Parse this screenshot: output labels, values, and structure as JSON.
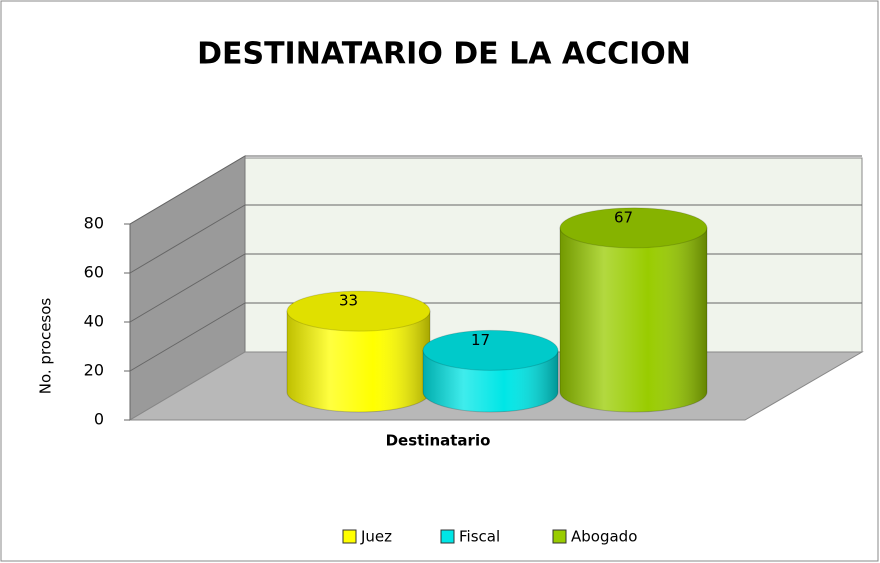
{
  "chart_data": {
    "type": "bar",
    "title": "DESTINATARIO DE LA ACCION",
    "y_label": "No. procesos",
    "categories": [
      "Destinatario"
    ],
    "series": [
      {
        "name": "Juez",
        "color": "#ffff00",
        "values": [
          33
        ]
      },
      {
        "name": "Fiscal",
        "color": "#00e6e6",
        "values": [
          17
        ]
      },
      {
        "name": "Abogado",
        "color": "#99cc00",
        "values": [
          67
        ]
      }
    ],
    "ylim": [
      0,
      80
    ],
    "yticks": [
      0,
      20,
      40,
      60,
      80
    ],
    "grid": true,
    "legend": "bottom"
  }
}
